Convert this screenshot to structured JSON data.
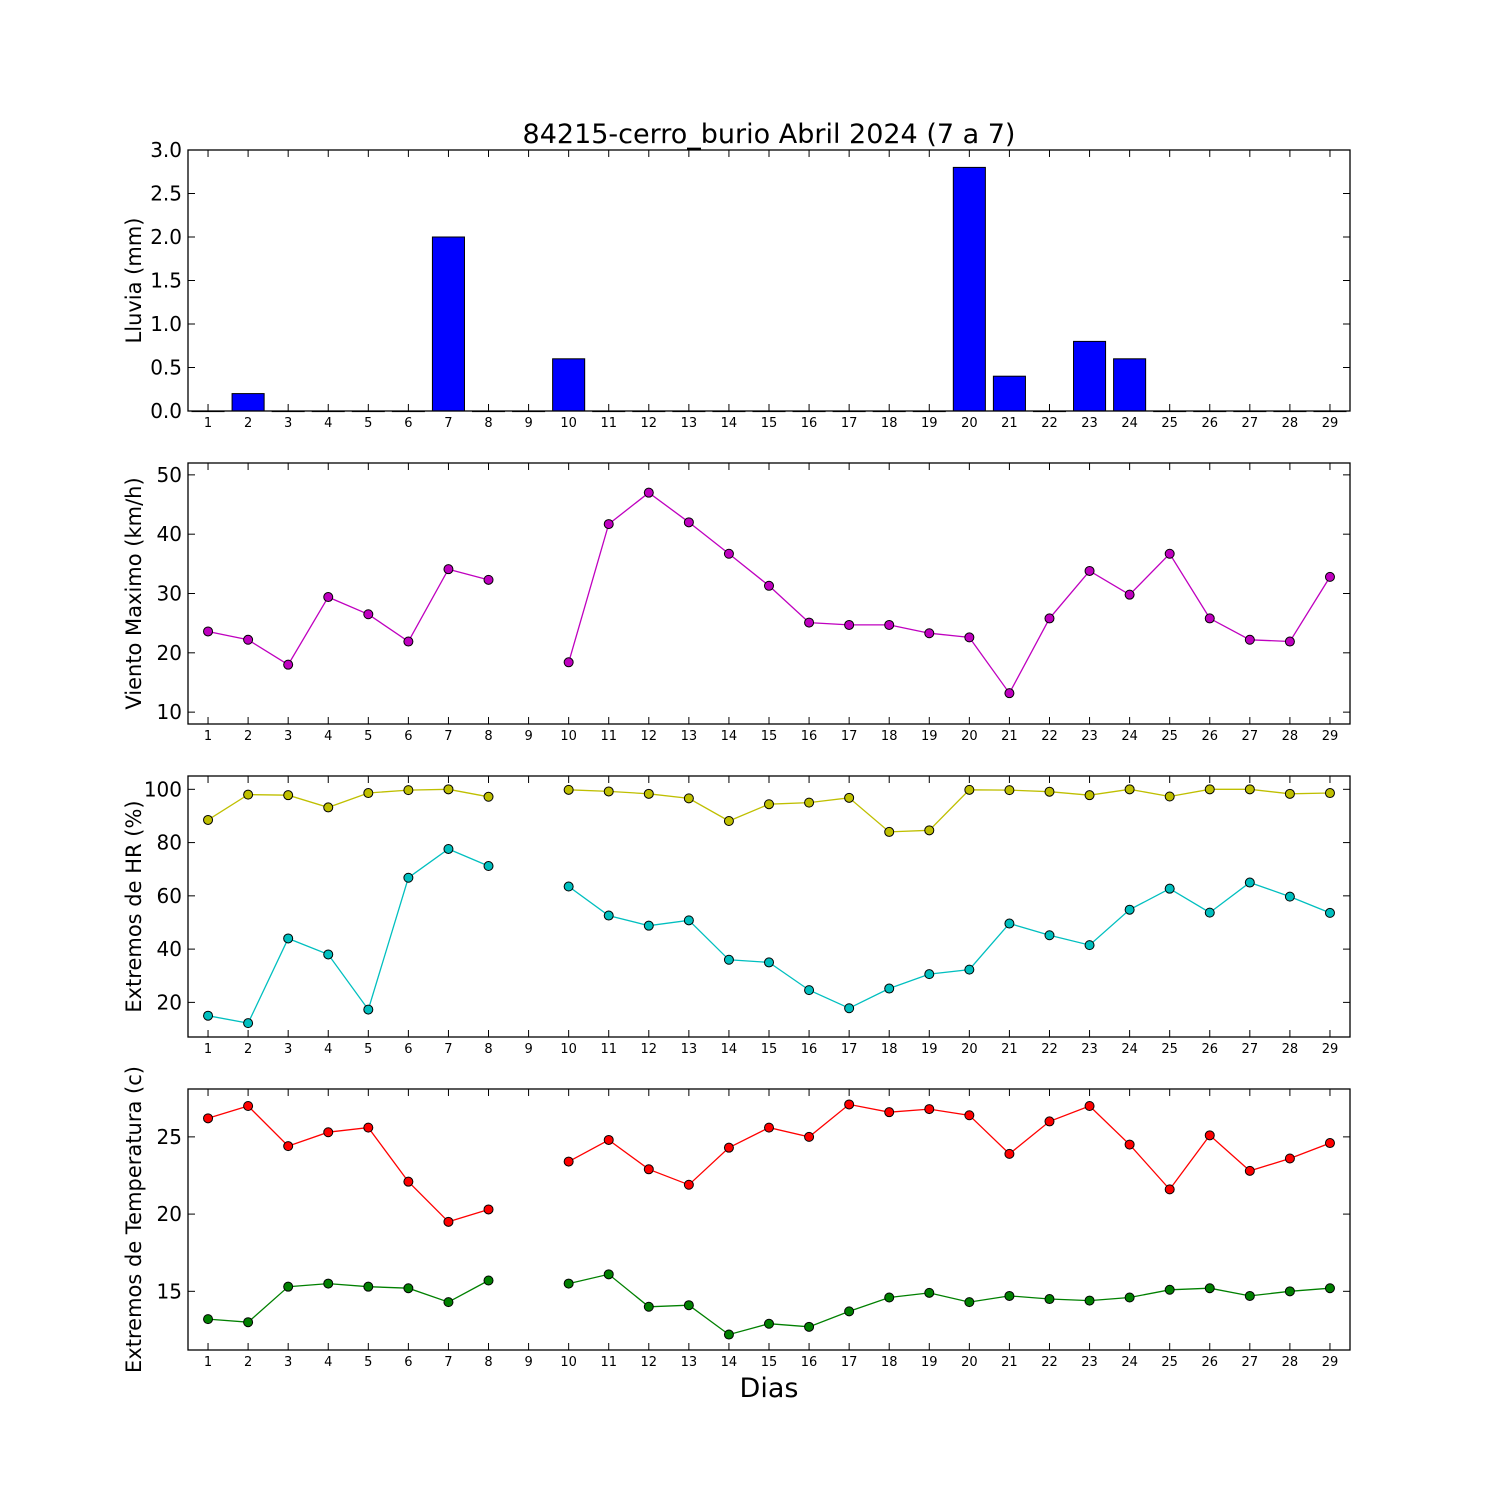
{
  "figure": {
    "title": "84215-cerro_burio Abril 2024  (7 a 7)",
    "xlabel": "Dias"
  },
  "chart_data": [
    {
      "type": "bar",
      "ylabel": "Lluvia (mm)",
      "ylim": [
        0,
        3.0
      ],
      "yticks": [
        "0.0",
        "0.5",
        "1.0",
        "1.5",
        "2.0",
        "2.5",
        "3.0"
      ],
      "x": [
        1,
        2,
        3,
        4,
        5,
        6,
        7,
        8,
        9,
        10,
        11,
        12,
        13,
        14,
        15,
        16,
        17,
        18,
        19,
        20,
        21,
        22,
        23,
        24,
        25,
        26,
        27,
        28,
        29
      ],
      "series": [
        {
          "color": "#0000ff",
          "values": [
            0,
            0.2,
            0,
            0,
            0,
            0,
            2.0,
            0,
            0,
            0.6,
            0,
            0,
            0,
            0,
            0,
            0,
            0,
            0,
            0,
            2.8,
            0.4,
            0,
            0.8,
            0.6,
            0,
            0,
            0,
            0,
            0
          ]
        }
      ]
    },
    {
      "type": "line",
      "ylabel": "Viento Maximo (km/h)",
      "ylim": [
        8,
        52
      ],
      "yticks": [
        "10",
        "20",
        "30",
        "40",
        "50"
      ],
      "x": [
        1,
        2,
        3,
        4,
        5,
        6,
        7,
        8,
        9,
        10,
        11,
        12,
        13,
        14,
        15,
        16,
        17,
        18,
        19,
        20,
        21,
        22,
        23,
        24,
        25,
        26,
        27,
        28,
        29
      ],
      "series": [
        {
          "color": "#bf00bf",
          "values": [
            23.6,
            22.2,
            18.0,
            29.4,
            26.5,
            21.9,
            34.1,
            32.3,
            null,
            18.4,
            41.7,
            47.0,
            42.0,
            36.7,
            31.3,
            25.1,
            24.7,
            24.7,
            23.3,
            22.6,
            13.2,
            25.8,
            33.8,
            29.8,
            36.7,
            25.8,
            22.2,
            21.9,
            32.8
          ]
        }
      ]
    },
    {
      "type": "line",
      "ylabel": "Extremos de HR (%)",
      "ylim": [
        7,
        105
      ],
      "yticks": [
        "20",
        "40",
        "60",
        "80",
        "100"
      ],
      "x": [
        1,
        2,
        3,
        4,
        5,
        6,
        7,
        8,
        9,
        10,
        11,
        12,
        13,
        14,
        15,
        16,
        17,
        18,
        19,
        20,
        21,
        22,
        23,
        24,
        25,
        26,
        27,
        28,
        29
      ],
      "series": [
        {
          "color": "#bfbf00",
          "values": [
            88.5,
            98.0,
            97.8,
            93.2,
            98.6,
            99.7,
            100.0,
            97.2,
            null,
            99.8,
            99.2,
            98.3,
            96.6,
            88.1,
            94.4,
            95.0,
            96.8,
            84.0,
            84.6,
            99.8,
            99.7,
            99.1,
            97.8,
            100.0,
            97.3,
            100.0,
            100.0,
            98.3,
            98.6
          ]
        },
        {
          "color": "#00bfbf",
          "values": [
            15.0,
            12.2,
            44.0,
            38.0,
            17.3,
            66.8,
            77.6,
            71.2,
            null,
            63.5,
            52.6,
            48.8,
            50.8,
            36.0,
            35.0,
            24.6,
            17.8,
            25.2,
            30.6,
            32.3,
            49.6,
            45.2,
            41.5,
            54.8,
            62.7,
            53.7,
            65.0,
            59.7,
            53.6
          ]
        }
      ]
    },
    {
      "type": "line",
      "ylabel": "Extremos de Temperatura (c)",
      "ylim": [
        11.2,
        28.1
      ],
      "yticks": [
        "15",
        "20",
        "25"
      ],
      "x": [
        1,
        2,
        3,
        4,
        5,
        6,
        7,
        8,
        9,
        10,
        11,
        12,
        13,
        14,
        15,
        16,
        17,
        18,
        19,
        20,
        21,
        22,
        23,
        24,
        25,
        26,
        27,
        28,
        29
      ],
      "series": [
        {
          "color": "#ff0000",
          "values": [
            26.2,
            27.0,
            24.4,
            25.3,
            25.6,
            22.1,
            19.5,
            20.3,
            null,
            23.4,
            24.8,
            22.9,
            21.9,
            24.3,
            25.6,
            25.0,
            27.1,
            26.6,
            26.8,
            26.4,
            23.9,
            26.0,
            27.0,
            24.5,
            21.6,
            25.1,
            22.8,
            23.6,
            24.6
          ]
        },
        {
          "color": "#008000",
          "values": [
            13.2,
            13.0,
            15.3,
            15.5,
            15.3,
            15.2,
            14.3,
            15.7,
            null,
            15.5,
            16.1,
            14.0,
            14.1,
            12.2,
            12.9,
            12.7,
            13.7,
            14.6,
            14.9,
            14.3,
            14.7,
            14.5,
            14.4,
            14.6,
            15.1,
            15.2,
            14.7,
            15.0,
            15.2
          ]
        }
      ]
    }
  ]
}
